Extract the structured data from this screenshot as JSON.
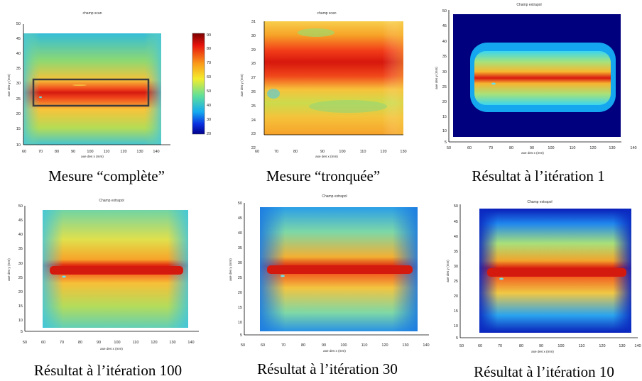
{
  "colorbar": {
    "ticks": [
      "90",
      "80",
      "70",
      "60",
      "50",
      "40",
      "30",
      "20"
    ]
  },
  "panels": [
    {
      "title": "champ scan",
      "caption": "Mesure “complète”",
      "xlabel": "axe des x (mm)",
      "ylabel": "axe des y (mm)",
      "xticks": [
        "60",
        "70",
        "80",
        "90",
        "100",
        "110",
        "120",
        "130",
        "140"
      ],
      "yticks": [
        "50",
        "45",
        "40",
        "35",
        "30",
        "25",
        "20",
        "15",
        "10"
      ]
    },
    {
      "title": "champ scan",
      "caption": "Mesure “tronquée”",
      "xlabel": "axe des x (mm)",
      "ylabel": "axe des y (mm)",
      "xticks": [
        "60",
        "70",
        "80",
        "90",
        "100",
        "110",
        "120",
        "130"
      ],
      "yticks": [
        "31",
        "30",
        "29",
        "28",
        "27",
        "26",
        "25",
        "24",
        "23",
        "22"
      ]
    },
    {
      "title": "Champ extrapol",
      "caption": "Résultat à l’itération 1",
      "xlabel": "axe des x (mm)",
      "ylabel": "axe des y (mm)",
      "xticks": [
        "50",
        "60",
        "70",
        "80",
        "90",
        "100",
        "110",
        "120",
        "130",
        "140"
      ],
      "yticks": [
        "50",
        "45",
        "40",
        "35",
        "30",
        "25",
        "20",
        "15",
        "10",
        "5"
      ]
    },
    {
      "title": "Champ extrapol",
      "caption": "Résultat à l’itération 100",
      "xlabel": "axe des x (mm)",
      "ylabel": "axe des y (mm)",
      "xticks": [
        "50",
        "60",
        "70",
        "80",
        "90",
        "100",
        "110",
        "120",
        "130",
        "140"
      ],
      "yticks": [
        "50",
        "45",
        "40",
        "35",
        "30",
        "25",
        "20",
        "15",
        "10",
        "5"
      ]
    },
    {
      "title": "Champ extrapol",
      "caption": "Résultat à l’itération 30",
      "xlabel": "axe des x (mm)",
      "ylabel": "axe des y (mm)",
      "xticks": [
        "50",
        "60",
        "70",
        "80",
        "90",
        "100",
        "110",
        "120",
        "130",
        "140"
      ],
      "yticks": [
        "50",
        "45",
        "40",
        "35",
        "30",
        "25",
        "20",
        "15",
        "10",
        "5"
      ]
    },
    {
      "title": "Champ extrapol",
      "caption": "Résultat à l’itération 10",
      "xlabel": "axe des x (mm)",
      "ylabel": "axe des y (mm)",
      "xticks": [
        "50",
        "60",
        "70",
        "80",
        "90",
        "100",
        "110",
        "120",
        "130",
        "140"
      ],
      "yticks": [
        "50",
        "45",
        "40",
        "35",
        "30",
        "25",
        "20",
        "15",
        "10",
        "5"
      ]
    }
  ]
}
